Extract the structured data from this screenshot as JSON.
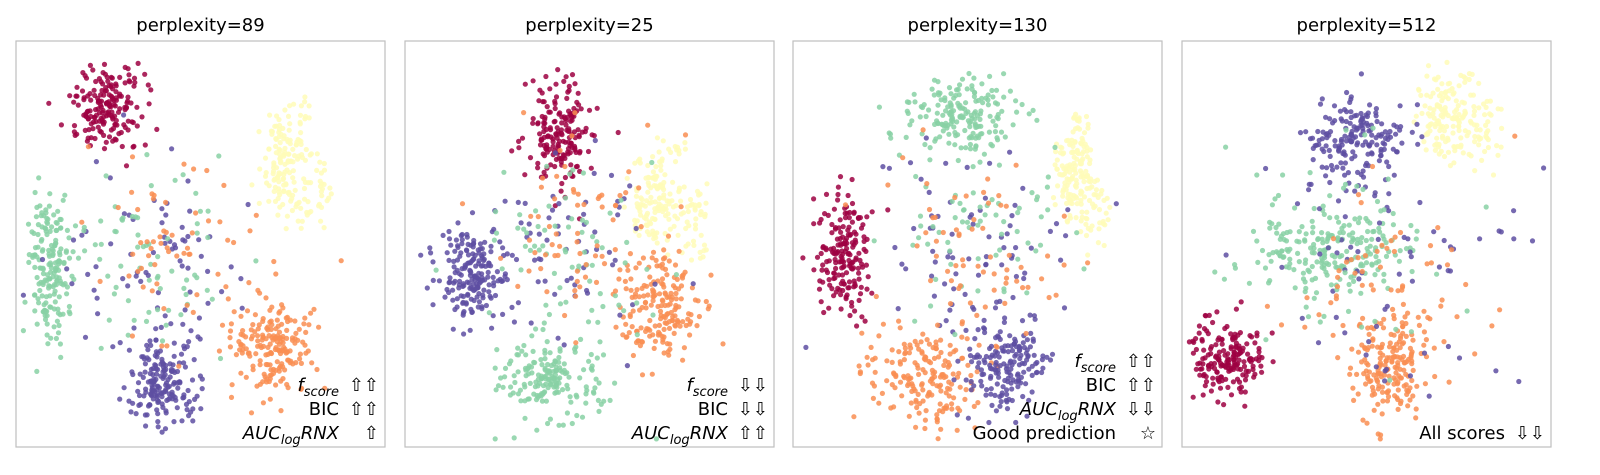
{
  "colors": {
    "class_0": "#9e0142",
    "class_1": "#5e4fa2",
    "class_2": "#88d1a4",
    "class_3": "#f98e52",
    "class_4": "#fffbb8"
  },
  "chart_data": [
    {
      "type": "scatter",
      "title": "perplexity=89",
      "annotations": [
        {
          "metric": "f",
          "sub": "score",
          "italic": true,
          "arrows": "⇧⇧"
        },
        {
          "metric": "BIC",
          "sub": "",
          "italic": false,
          "arrows": "⇧⇧"
        },
        {
          "metric": "AUC",
          "sub": "log",
          "tail": "RNX",
          "italic": true,
          "arrows": "⇧"
        }
      ],
      "clusters": [
        {
          "cls": 0,
          "shape": "blob",
          "cx": 0.25,
          "cy": 0.16,
          "rx": 0.09,
          "ry": 0.09
        },
        {
          "cls": 2,
          "shape": "blob",
          "cx": 0.09,
          "cy": 0.56,
          "rx": 0.05,
          "ry": 0.17
        },
        {
          "cls": 4,
          "shape": "arc",
          "cx": 0.8,
          "cy": 0.3,
          "rx": 0.13,
          "ry": 0.16
        },
        {
          "cls": 1,
          "shape": "blob",
          "cx": 0.4,
          "cy": 0.84,
          "rx": 0.09,
          "ry": 0.1
        },
        {
          "cls": 3,
          "shape": "blob",
          "cx": 0.7,
          "cy": 0.76,
          "rx": 0.1,
          "ry": 0.1
        },
        {
          "cls": 1,
          "shape": "scatter",
          "cx": 0.4,
          "cy": 0.52,
          "rx": 0.25,
          "ry": 0.22
        },
        {
          "cls": 2,
          "shape": "scatter",
          "cx": 0.35,
          "cy": 0.55,
          "rx": 0.2,
          "ry": 0.2
        },
        {
          "cls": 3,
          "shape": "scatter",
          "cx": 0.45,
          "cy": 0.5,
          "rx": 0.22,
          "ry": 0.22
        }
      ]
    },
    {
      "type": "scatter",
      "title": "perplexity=25",
      "annotations": [
        {
          "metric": "f",
          "sub": "score",
          "italic": true,
          "arrows": "⇩⇩"
        },
        {
          "metric": "BIC",
          "sub": "",
          "italic": false,
          "arrows": "⇩⇩"
        },
        {
          "metric": "AUC",
          "sub": "log",
          "tail": "RNX",
          "italic": true,
          "arrows": "⇧⇧"
        }
      ],
      "clusters": [
        {
          "cls": 0,
          "shape": "blob",
          "cx": 0.42,
          "cy": 0.22,
          "rx": 0.08,
          "ry": 0.12
        },
        {
          "cls": 4,
          "shape": "arc",
          "cx": 0.77,
          "cy": 0.38,
          "rx": 0.15,
          "ry": 0.15
        },
        {
          "cls": 1,
          "shape": "blob",
          "cx": 0.18,
          "cy": 0.58,
          "rx": 0.08,
          "ry": 0.1
        },
        {
          "cls": 3,
          "shape": "blob",
          "cx": 0.68,
          "cy": 0.66,
          "rx": 0.1,
          "ry": 0.13
        },
        {
          "cls": 2,
          "shape": "blob",
          "cx": 0.4,
          "cy": 0.83,
          "rx": 0.12,
          "ry": 0.09
        },
        {
          "cls": 1,
          "shape": "scatter",
          "cx": 0.4,
          "cy": 0.5,
          "rx": 0.25,
          "ry": 0.2
        },
        {
          "cls": 2,
          "shape": "scatter",
          "cx": 0.45,
          "cy": 0.52,
          "rx": 0.22,
          "ry": 0.22
        },
        {
          "cls": 3,
          "shape": "scatter",
          "cx": 0.48,
          "cy": 0.48,
          "rx": 0.22,
          "ry": 0.2
        }
      ]
    },
    {
      "type": "scatter",
      "title": "perplexity=130",
      "annotations": [
        {
          "metric": "f",
          "sub": "score",
          "italic": true,
          "arrows": "⇧⇧"
        },
        {
          "metric": "BIC",
          "sub": "",
          "italic": false,
          "arrows": "⇧⇧"
        },
        {
          "metric": "AUC",
          "sub": "log",
          "tail": "RNX",
          "italic": true,
          "arrows": "⇩⇩"
        },
        {
          "metric": "Good prediction",
          "sub": "",
          "italic": false,
          "arrows": "☆"
        }
      ],
      "clusters": [
        {
          "cls": 2,
          "shape": "blob",
          "cx": 0.45,
          "cy": 0.18,
          "rx": 0.14,
          "ry": 0.08
        },
        {
          "cls": 4,
          "shape": "arc",
          "cx": 0.82,
          "cy": 0.33,
          "rx": 0.1,
          "ry": 0.16
        },
        {
          "cls": 0,
          "shape": "blob",
          "cx": 0.14,
          "cy": 0.52,
          "rx": 0.07,
          "ry": 0.14
        },
        {
          "cls": 3,
          "shape": "blob",
          "cx": 0.35,
          "cy": 0.82,
          "rx": 0.13,
          "ry": 0.12
        },
        {
          "cls": 1,
          "shape": "blob",
          "cx": 0.58,
          "cy": 0.8,
          "rx": 0.1,
          "ry": 0.12
        },
        {
          "cls": 1,
          "shape": "scatter",
          "cx": 0.5,
          "cy": 0.5,
          "rx": 0.25,
          "ry": 0.22
        },
        {
          "cls": 2,
          "shape": "scatter",
          "cx": 0.5,
          "cy": 0.45,
          "rx": 0.22,
          "ry": 0.2
        },
        {
          "cls": 3,
          "shape": "scatter",
          "cx": 0.48,
          "cy": 0.55,
          "rx": 0.22,
          "ry": 0.2
        }
      ]
    },
    {
      "type": "scatter",
      "title": "perplexity=512",
      "annotations": [
        {
          "metric": "All scores",
          "sub": "",
          "italic": false,
          "arrows": "⇩⇩"
        }
      ],
      "clusters": [
        {
          "cls": 4,
          "shape": "arc",
          "cx": 0.8,
          "cy": 0.18,
          "rx": 0.15,
          "ry": 0.12
        },
        {
          "cls": 1,
          "shape": "blob",
          "cx": 0.48,
          "cy": 0.25,
          "rx": 0.12,
          "ry": 0.1
        },
        {
          "cls": 2,
          "shape": "blob",
          "cx": 0.38,
          "cy": 0.52,
          "rx": 0.18,
          "ry": 0.1
        },
        {
          "cls": 0,
          "shape": "blob",
          "cx": 0.13,
          "cy": 0.78,
          "rx": 0.09,
          "ry": 0.08
        },
        {
          "cls": 3,
          "shape": "blob",
          "cx": 0.56,
          "cy": 0.8,
          "rx": 0.1,
          "ry": 0.12
        },
        {
          "cls": 1,
          "shape": "scatter",
          "cx": 0.55,
          "cy": 0.55,
          "rx": 0.28,
          "ry": 0.25
        },
        {
          "cls": 2,
          "shape": "scatter",
          "cx": 0.45,
          "cy": 0.5,
          "rx": 0.25,
          "ry": 0.22
        },
        {
          "cls": 3,
          "shape": "scatter",
          "cx": 0.55,
          "cy": 0.6,
          "rx": 0.25,
          "ry": 0.22
        }
      ]
    }
  ]
}
